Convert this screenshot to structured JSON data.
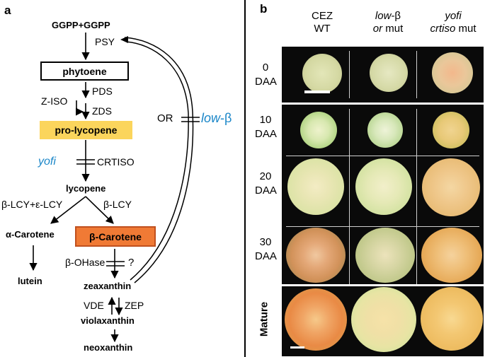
{
  "panel_a": {
    "label": "a",
    "substrate": "GGPP+GGPP",
    "psy": "PSY",
    "phytoene": "phytoene",
    "z_iso": "Z-ISO",
    "pds": "PDS",
    "zds": "ZDS",
    "pro_lycopene": "pro-lycopene",
    "yofi": "yofi",
    "crtiso": "CRTISO",
    "or_label": "OR",
    "low_beta": "low-β",
    "lycopene": "lycopene",
    "lcy_be": "β-LCY+ε-LCY",
    "lcy_b": "β-LCY",
    "alpha_carotene": "α-Carotene",
    "beta_carotene": "β-Carotene",
    "lutein": "lutein",
    "beta_ohase": "β-OHase",
    "question": "?",
    "zeaxanthin": "zeaxanthin",
    "vde": "VDE",
    "zep": "ZEP",
    "violaxanthin": "violaxanthin",
    "neoxanthin": "neoxanthin",
    "colors": {
      "pro_lycopene_fill": "#fbd55c",
      "beta_carotene_fill": "#f07a35",
      "beta_carotene_border": "#c0501e",
      "blue_text": "#1a86c8"
    }
  },
  "panel_b": {
    "label": "b",
    "columns": [
      {
        "line1": "CEZ",
        "line2": "WT"
      },
      {
        "line1": "low-β",
        "line2": "or mut"
      },
      {
        "line1": "yofi",
        "line2": "crtiso mut"
      }
    ],
    "rows": [
      {
        "line1": "0",
        "line2": "DAA"
      },
      {
        "line1": "10",
        "line2": "DAA"
      },
      {
        "line1": "20",
        "line2": "DAA"
      },
      {
        "line1": "30",
        "line2": "DAA"
      },
      {
        "line1": "Mature",
        "line2": ""
      }
    ],
    "colors": {
      "photo_background": "#0a0a0a",
      "grid_line": "#cfcfcf"
    }
  }
}
